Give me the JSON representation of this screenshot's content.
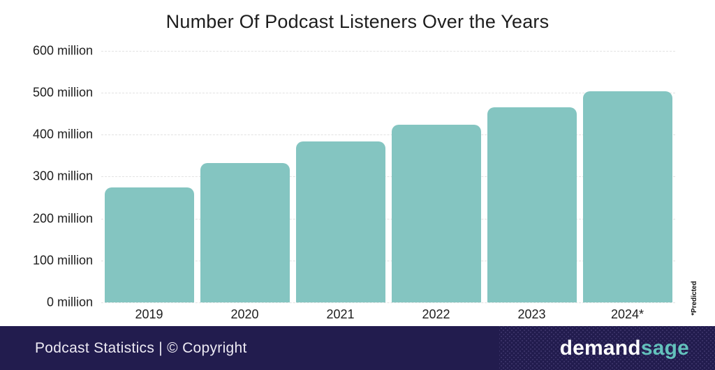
{
  "chart_data": {
    "type": "bar",
    "title": "Number Of Podcast Listeners Over the Years",
    "categories": [
      "2019",
      "2020",
      "2021",
      "2022",
      "2023",
      "2024*"
    ],
    "values": [
      274,
      332,
      383,
      423,
      464,
      503
    ],
    "unit": "million",
    "xlabel": "",
    "ylabel": "",
    "ylim": [
      0,
      600
    ],
    "ytick_step": 100,
    "ytick_labels": [
      "0 million",
      "100 million",
      "200 million",
      "300 million",
      "400 million",
      "500 million",
      "600 million"
    ],
    "grid": "horizontal dashed gridlines, light gray",
    "legend": "none",
    "annotation": "*Predicted",
    "bar_color": "#84c5c1"
  },
  "footer": {
    "caption": "Podcast Statistics | © Copyright",
    "brand": {
      "part1": "demand",
      "part2": "sage"
    }
  },
  "colors": {
    "background": "#ffffff",
    "title_text": "#1d1d1d",
    "axis_text": "#1e1e1e",
    "gridline": "#e2e2e2",
    "bar": "#84c5c1",
    "footer_background": "#221c4e",
    "footer_text": "#edeaf3",
    "brand_part1": "#ffffff",
    "brand_part2": "#63c1bc",
    "annotation_text": "#111111"
  }
}
